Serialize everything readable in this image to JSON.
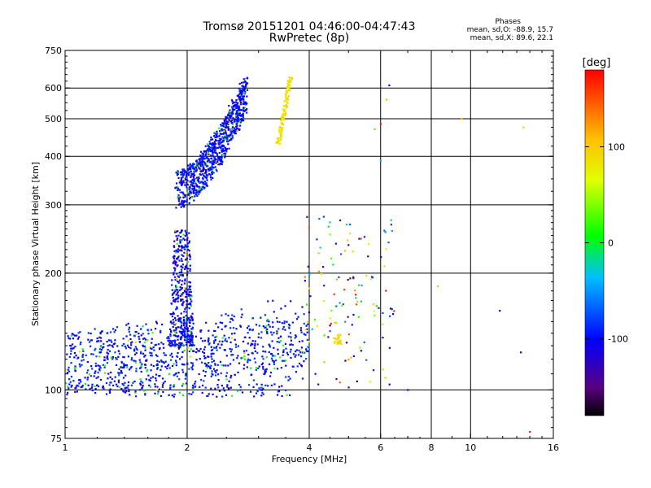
{
  "chart_data": {
    "type": "scatter",
    "title": "Tromsø 20151201 04:46:00-04:47:43",
    "subtitle": "RwPretec (8p)",
    "xlabel": "Frequency [MHz]",
    "ylabel": "Stationary phase Virtual Height [km]",
    "x_scale": "log",
    "y_scale": "log",
    "xlim": [
      1,
      16
    ],
    "ylim": [
      75,
      750
    ],
    "x_ticks": [
      1,
      2,
      4,
      6,
      8,
      10,
      16
    ],
    "y_ticks": [
      75,
      100,
      200,
      300,
      400,
      500,
      600,
      750
    ],
    "grid": true,
    "phase_stats": {
      "heading": "Phases",
      "o_line": "mean, sd,O: -88.9, 15.7",
      "x_line": "mean, sd,X:  89.6, 22.1"
    },
    "colorbar": {
      "label": "[deg]",
      "ticks": [
        100,
        0,
        -100
      ],
      "range": [
        -180,
        180
      ]
    },
    "clusters": [
      {
        "region": "F-layer trace",
        "x_range": [
          1.9,
          2.8
        ],
        "y_range": [
          320,
          640
        ],
        "phase_deg": -100
      },
      {
        "region": "F-layer echoes",
        "x_range": [
          3.4,
          3.65
        ],
        "y_range": [
          430,
          640
        ],
        "phase_deg": 90
      },
      {
        "region": "spread-E",
        "x_range": [
          1.85,
          2.05
        ],
        "y_range": [
          130,
          260
        ],
        "phase_deg": -105
      },
      {
        "region": "E-layer",
        "x_range": [
          1.0,
          4.0
        ],
        "y_range": [
          95,
          165
        ],
        "phase_deg": -100
      },
      {
        "region": "sporadic",
        "x_range": [
          4.2,
          6.3
        ],
        "y_range": [
          100,
          270
        ],
        "phase_deg": -80
      }
    ]
  }
}
